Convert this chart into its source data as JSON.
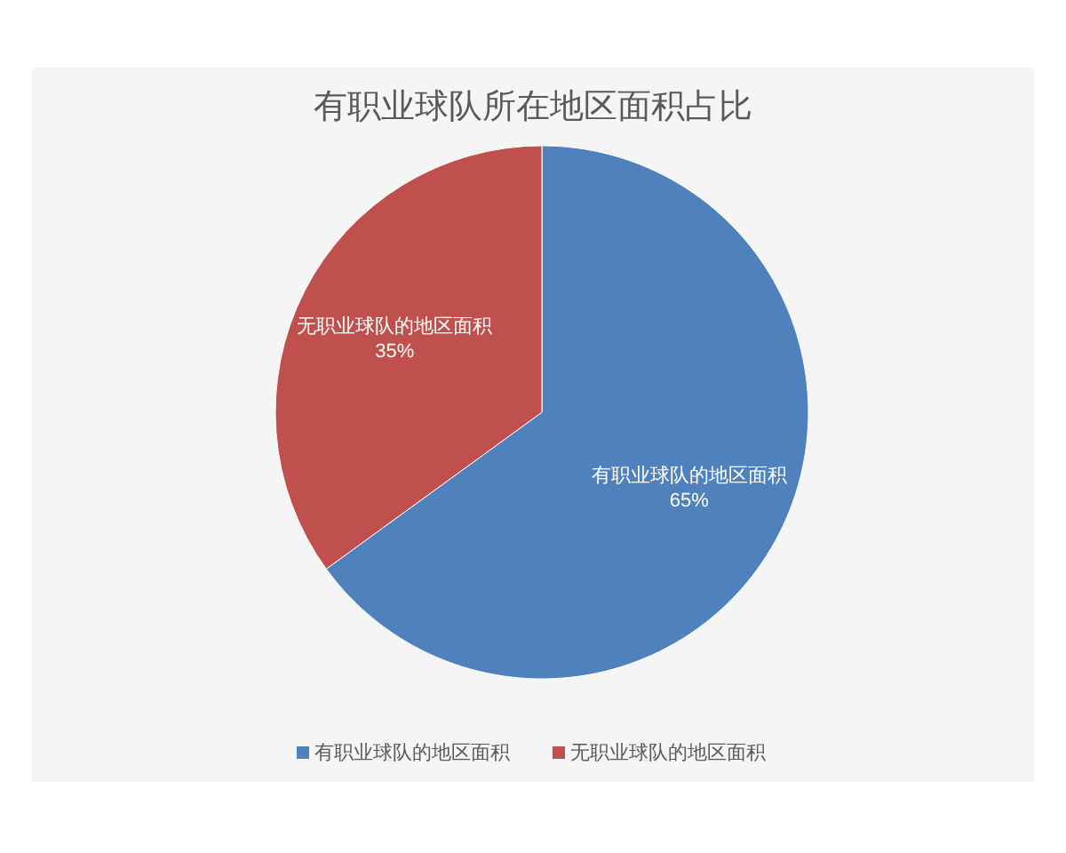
{
  "chart_data": {
    "type": "pie",
    "title": "有职业球队所在地区面积占比",
    "categories": [
      "有职业球队的地区面积",
      "无职业球队的地区面积"
    ],
    "values": [
      65,
      35
    ],
    "value_labels": [
      "65%",
      "35%"
    ],
    "colors": [
      "#4f81bd",
      "#c0504d"
    ],
    "legend": "bottom"
  }
}
